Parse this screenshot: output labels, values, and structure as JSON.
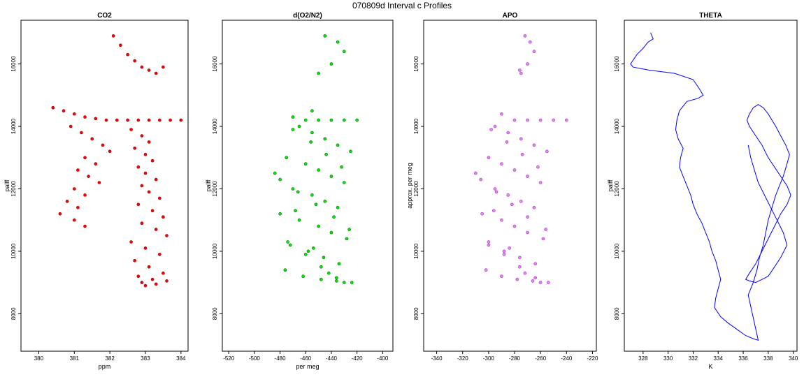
{
  "figure": {
    "title": "070809d   Interval c Profiles"
  },
  "chart_data": [
    {
      "type": "scatter",
      "title": "CO2",
      "xlabel": "ppm",
      "ylabel": "palff",
      "xlim": [
        379.5,
        384.2
      ],
      "ylim": [
        6800,
        17400
      ],
      "xticks": [
        380,
        381,
        382,
        383,
        384
      ],
      "yticks": [
        8000,
        10000,
        12000,
        14000,
        16000
      ],
      "color": "#ff0000",
      "point_outline": "#8b0000",
      "series": [
        {
          "x": [
            382.1,
            382.3,
            382.5,
            382.7,
            382.9,
            383.1,
            383.3,
            383.5,
            380.4,
            380.7,
            381.0,
            381.3,
            381.6,
            381.9,
            382.2,
            382.5,
            382.8,
            383.1,
            383.4,
            383.7,
            384.0,
            380.9,
            381.2,
            381.5,
            381.8,
            382.0,
            381.3,
            381.6,
            381.1,
            381.4,
            381.7,
            381.0,
            381.3,
            380.8,
            381.1,
            380.6,
            381.0,
            381.3,
            382.6,
            382.9,
            383.1,
            382.7,
            383.0,
            383.2,
            382.8,
            383.0,
            383.3,
            382.9,
            383.1,
            383.4,
            382.8,
            383.2,
            383.5,
            382.9,
            383.3,
            383.6,
            382.6,
            383.0,
            383.4,
            382.7,
            383.1,
            383.5,
            382.8,
            383.2,
            383.6,
            382.9,
            383.3,
            383.0
          ],
          "y": [
            16900,
            16600,
            16300,
            16100,
            15900,
            15800,
            15700,
            15900,
            14600,
            14500,
            14400,
            14300,
            14250,
            14200,
            14200,
            14200,
            14200,
            14200,
            14200,
            14200,
            14200,
            14000,
            13800,
            13600,
            13400,
            13200,
            13000,
            12800,
            12600,
            12400,
            12200,
            12000,
            11800,
            11600,
            11400,
            11200,
            11000,
            10800,
            13900,
            13700,
            13500,
            13300,
            13100,
            12900,
            12700,
            12500,
            12300,
            12100,
            11900,
            11700,
            11500,
            11300,
            11100,
            10900,
            10700,
            10500,
            10300,
            10100,
            9900,
            9700,
            9500,
            9300,
            9200,
            9100,
            9050,
            9000,
            8950,
            8900
          ]
        }
      ]
    },
    {
      "type": "scatter",
      "title": "d(O2/N2)",
      "xlabel": "per meg",
      "ylabel": "palff",
      "xlim": [
        -525,
        -392
      ],
      "ylim": [
        6800,
        17400
      ],
      "xticks": [
        -520,
        -500,
        -480,
        -460,
        -440,
        -420,
        -400
      ],
      "yticks": [
        8000,
        10000,
        12000,
        14000,
        16000
      ],
      "color": "#00ee00",
      "point_outline": "#006400",
      "series": [
        {
          "x": [
            -450,
            -440,
            -430,
            -435,
            -445,
            -455,
            -470,
            -460,
            -450,
            -440,
            -430,
            -420,
            -465,
            -455,
            -445,
            -435,
            -425,
            -475,
            -460,
            -450,
            -440,
            -430,
            -470,
            -455,
            -445,
            -435,
            -480,
            -465,
            -450,
            -440,
            -428,
            -472,
            -458,
            -446,
            -434,
            -476,
            -462,
            -448,
            -436,
            -424,
            -470,
            -456,
            -444,
            -432,
            -480,
            -466,
            -452,
            -438,
            -426,
            -474,
            -460,
            -448,
            -436,
            -484,
            -468,
            -454,
            -442,
            -430
          ],
          "y": [
            15700,
            16000,
            16400,
            16700,
            16900,
            14500,
            14300,
            14200,
            14200,
            14200,
            14200,
            14200,
            14000,
            13800,
            13600,
            13400,
            13200,
            13000,
            12800,
            12600,
            12400,
            12200,
            12000,
            11800,
            11600,
            11400,
            11200,
            11000,
            10800,
            10600,
            10400,
            10200,
            10000,
            9800,
            9600,
            9400,
            9200,
            9100,
            9050,
            9000,
            13900,
            13500,
            13100,
            12700,
            12300,
            11900,
            11500,
            11100,
            10700,
            10300,
            9900,
            9500,
            9150,
            12500,
            11300,
            10100,
            9300,
            9000
          ]
        }
      ]
    },
    {
      "type": "scatter",
      "title": "APO",
      "xlabel": "",
      "ylabel": "approx. per meg",
      "xlim": [
        -350,
        -217
      ],
      "ylim": [
        6800,
        17400
      ],
      "xticks": [
        -340,
        -320,
        -300,
        -280,
        -260,
        -240,
        -220
      ],
      "yticks": [
        8000,
        10000,
        12000,
        14000,
        16000
      ],
      "color": "#ee82ee",
      "point_outline": "#9932cc",
      "series": [
        {
          "x": [
            -275,
            -270,
            -265,
            -268,
            -272,
            -290,
            -280,
            -270,
            -260,
            -250,
            -240,
            -295,
            -285,
            -275,
            -265,
            -255,
            -300,
            -290,
            -280,
            -270,
            -260,
            -295,
            -285,
            -275,
            -265,
            -305,
            -290,
            -280,
            -270,
            -258,
            -300,
            -288,
            -276,
            -264,
            -302,
            -290,
            -278,
            -266,
            -254,
            -298,
            -286,
            -274,
            -262,
            -306,
            -294,
            -282,
            -270,
            -256,
            -300,
            -288,
            -276,
            -264,
            -310,
            -296,
            -284,
            -272,
            -260,
            -276
          ],
          "y": [
            15700,
            16000,
            16400,
            16700,
            16900,
            14400,
            14200,
            14200,
            14200,
            14200,
            14200,
            14000,
            13800,
            13600,
            13400,
            13200,
            13000,
            12800,
            12600,
            12400,
            12200,
            12000,
            11800,
            11600,
            11400,
            11200,
            11000,
            10800,
            10600,
            10400,
            10200,
            10000,
            9800,
            9600,
            9400,
            9200,
            9100,
            9050,
            9000,
            13900,
            13500,
            13100,
            12700,
            12300,
            11900,
            11500,
            11100,
            10700,
            10300,
            9900,
            9500,
            9150,
            12500,
            11300,
            10100,
            9300,
            9000,
            15800
          ]
        }
      ]
    },
    {
      "type": "line",
      "title": "THETA",
      "xlabel": "K",
      "ylabel": "palff",
      "xlim": [
        326.5,
        340.3
      ],
      "ylim": [
        6800,
        17400
      ],
      "xticks": [
        328,
        330,
        332,
        334,
        336,
        338,
        340
      ],
      "yticks": [
        8000,
        10000,
        12000,
        14000,
        16000
      ],
      "color": "#0000ff",
      "series": [
        {
          "x": [
            328.6,
            328.8,
            328.4,
            328.0,
            327.5,
            327.0,
            327.2,
            328.5,
            330.5,
            332.0,
            332.5,
            332.8,
            332.4,
            331.5,
            330.9,
            330.7,
            330.6,
            330.8,
            331.2,
            331.0,
            330.9,
            331.2,
            331.5,
            331.8,
            332.0,
            332.3,
            332.7,
            333.0,
            333.3,
            333.5,
            333.8,
            334.0,
            334.2,
            334.0,
            333.8,
            333.7,
            334.2,
            334.8,
            335.5,
            336.2,
            336.8,
            337.2,
            336.4,
            336.8,
            337.1,
            337.3,
            337.6,
            337.8,
            338.0,
            338.3,
            338.6,
            338.9,
            339.2,
            339.5,
            339.7,
            339.4,
            339.0,
            338.6,
            338.3,
            338.0,
            337.6,
            337.2,
            336.8,
            336.5,
            336.3,
            336.5,
            337.0,
            337.5,
            338.0,
            338.5,
            339.0,
            339.5,
            339.8,
            339.5,
            339.0,
            338.5,
            338.0,
            337.5,
            337.0,
            336.5,
            336.2,
            336.5,
            337.0,
            337.5,
            338.0,
            338.5,
            339.0,
            339.5,
            339.2,
            338.7,
            338.2,
            337.7,
            337.2,
            336.9,
            336.6,
            336.4
          ],
          "y": [
            17000,
            16800,
            16700,
            16500,
            16300,
            16000,
            15900,
            15800,
            15700,
            15500,
            15200,
            15000,
            14900,
            14800,
            14500,
            14200,
            13900,
            13600,
            13300,
            13000,
            12700,
            12400,
            12100,
            11800,
            11500,
            11200,
            10900,
            10600,
            10300,
            10000,
            9700,
            9400,
            9100,
            8800,
            8500,
            8200,
            7900,
            7700,
            7500,
            7300,
            7200,
            7150,
            8600,
            9000,
            9400,
            9800,
            10200,
            10600,
            11000,
            11400,
            11800,
            12100,
            12400,
            12800,
            13100,
            13400,
            13700,
            14000,
            14200,
            14400,
            14600,
            14700,
            14600,
            14400,
            14200,
            14000,
            13700,
            13400,
            13000,
            12700,
            12400,
            12100,
            11800,
            11500,
            11200,
            10800,
            10400,
            10000,
            9600,
            9300,
            9100,
            9050,
            9000,
            9100,
            9200,
            9500,
            9800,
            10200,
            10600,
            11000,
            11400,
            11800,
            12200,
            12600,
            13000,
            13400
          ]
        }
      ]
    }
  ]
}
